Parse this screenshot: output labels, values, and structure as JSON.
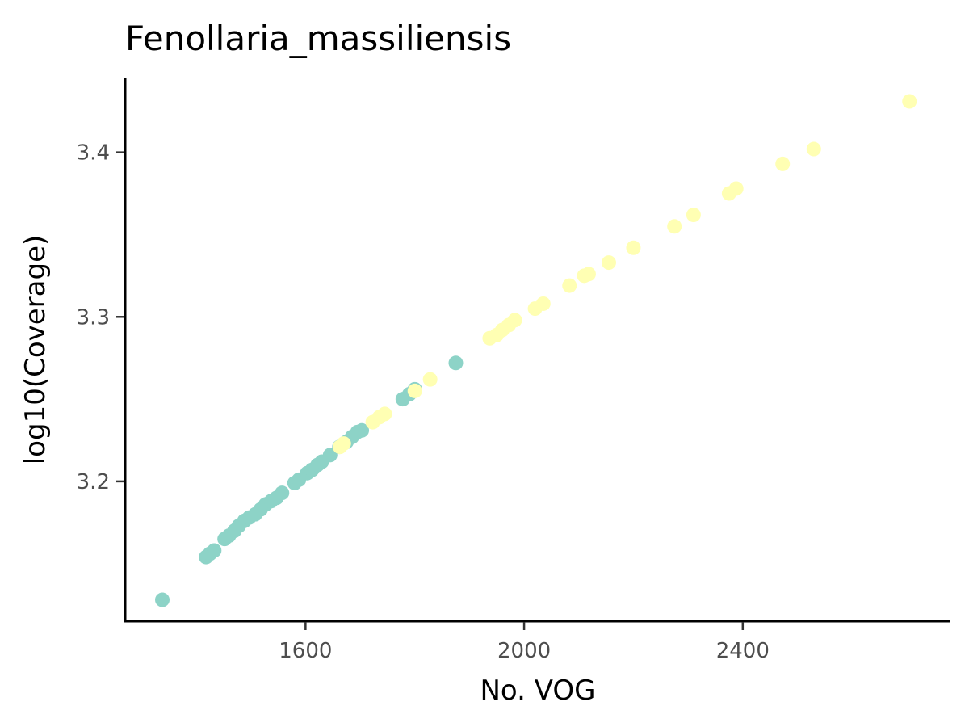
{
  "chart_data": {
    "type": "scatter",
    "title": "Fenollaria_massiliensis",
    "xlabel": "No. VOG",
    "ylabel": "log10(Coverage)",
    "xlim": [
      1270,
      2780
    ],
    "ylim": [
      3.115,
      3.445
    ],
    "x_ticks": [
      1600,
      2000,
      2400
    ],
    "y_ticks": [
      3.2,
      3.3,
      3.4
    ],
    "grid": false,
    "legend": "none",
    "colors": {
      "teal": "#8dd3c7",
      "yellow": "#ffffb3",
      "axis": "#000000",
      "tick_label": "#4d4d4d"
    },
    "series": [
      {
        "color": "#8dd3c7",
        "points": [
          [
            1338,
            3.128
          ],
          [
            1418,
            3.154
          ],
          [
            1425,
            3.156
          ],
          [
            1433,
            3.158
          ],
          [
            1452,
            3.165
          ],
          [
            1460,
            3.167
          ],
          [
            1470,
            3.17
          ],
          [
            1478,
            3.173
          ],
          [
            1488,
            3.176
          ],
          [
            1497,
            3.178
          ],
          [
            1508,
            3.18
          ],
          [
            1518,
            3.183
          ],
          [
            1527,
            3.186
          ],
          [
            1537,
            3.188
          ],
          [
            1547,
            3.19
          ],
          [
            1557,
            3.193
          ],
          [
            1580,
            3.199
          ],
          [
            1588,
            3.201
          ],
          [
            1603,
            3.205
          ],
          [
            1612,
            3.207
          ],
          [
            1622,
            3.21
          ],
          [
            1630,
            3.212
          ],
          [
            1645,
            3.216
          ],
          [
            1662,
            3.221
          ],
          [
            1675,
            3.224
          ],
          [
            1685,
            3.227
          ],
          [
            1695,
            3.23
          ],
          [
            1703,
            3.231
          ],
          [
            1778,
            3.25
          ],
          [
            1790,
            3.253
          ],
          [
            1800,
            3.256
          ],
          [
            1875,
            3.272
          ]
        ]
      },
      {
        "color": "#ffffb3",
        "points": [
          [
            1663,
            3.221
          ],
          [
            1670,
            3.223
          ],
          [
            1723,
            3.236
          ],
          [
            1735,
            3.239
          ],
          [
            1745,
            3.241
          ],
          [
            1800,
            3.255
          ],
          [
            1828,
            3.262
          ],
          [
            1937,
            3.287
          ],
          [
            1950,
            3.289
          ],
          [
            1960,
            3.292
          ],
          [
            1972,
            3.295
          ],
          [
            1983,
            3.298
          ],
          [
            2020,
            3.305
          ],
          [
            2035,
            3.308
          ],
          [
            2083,
            3.319
          ],
          [
            2110,
            3.325
          ],
          [
            2118,
            3.326
          ],
          [
            2155,
            3.333
          ],
          [
            2200,
            3.342
          ],
          [
            2275,
            3.355
          ],
          [
            2310,
            3.362
          ],
          [
            2375,
            3.375
          ],
          [
            2388,
            3.378
          ],
          [
            2473,
            3.393
          ],
          [
            2530,
            3.402
          ],
          [
            2705,
            3.431
          ]
        ]
      }
    ]
  }
}
